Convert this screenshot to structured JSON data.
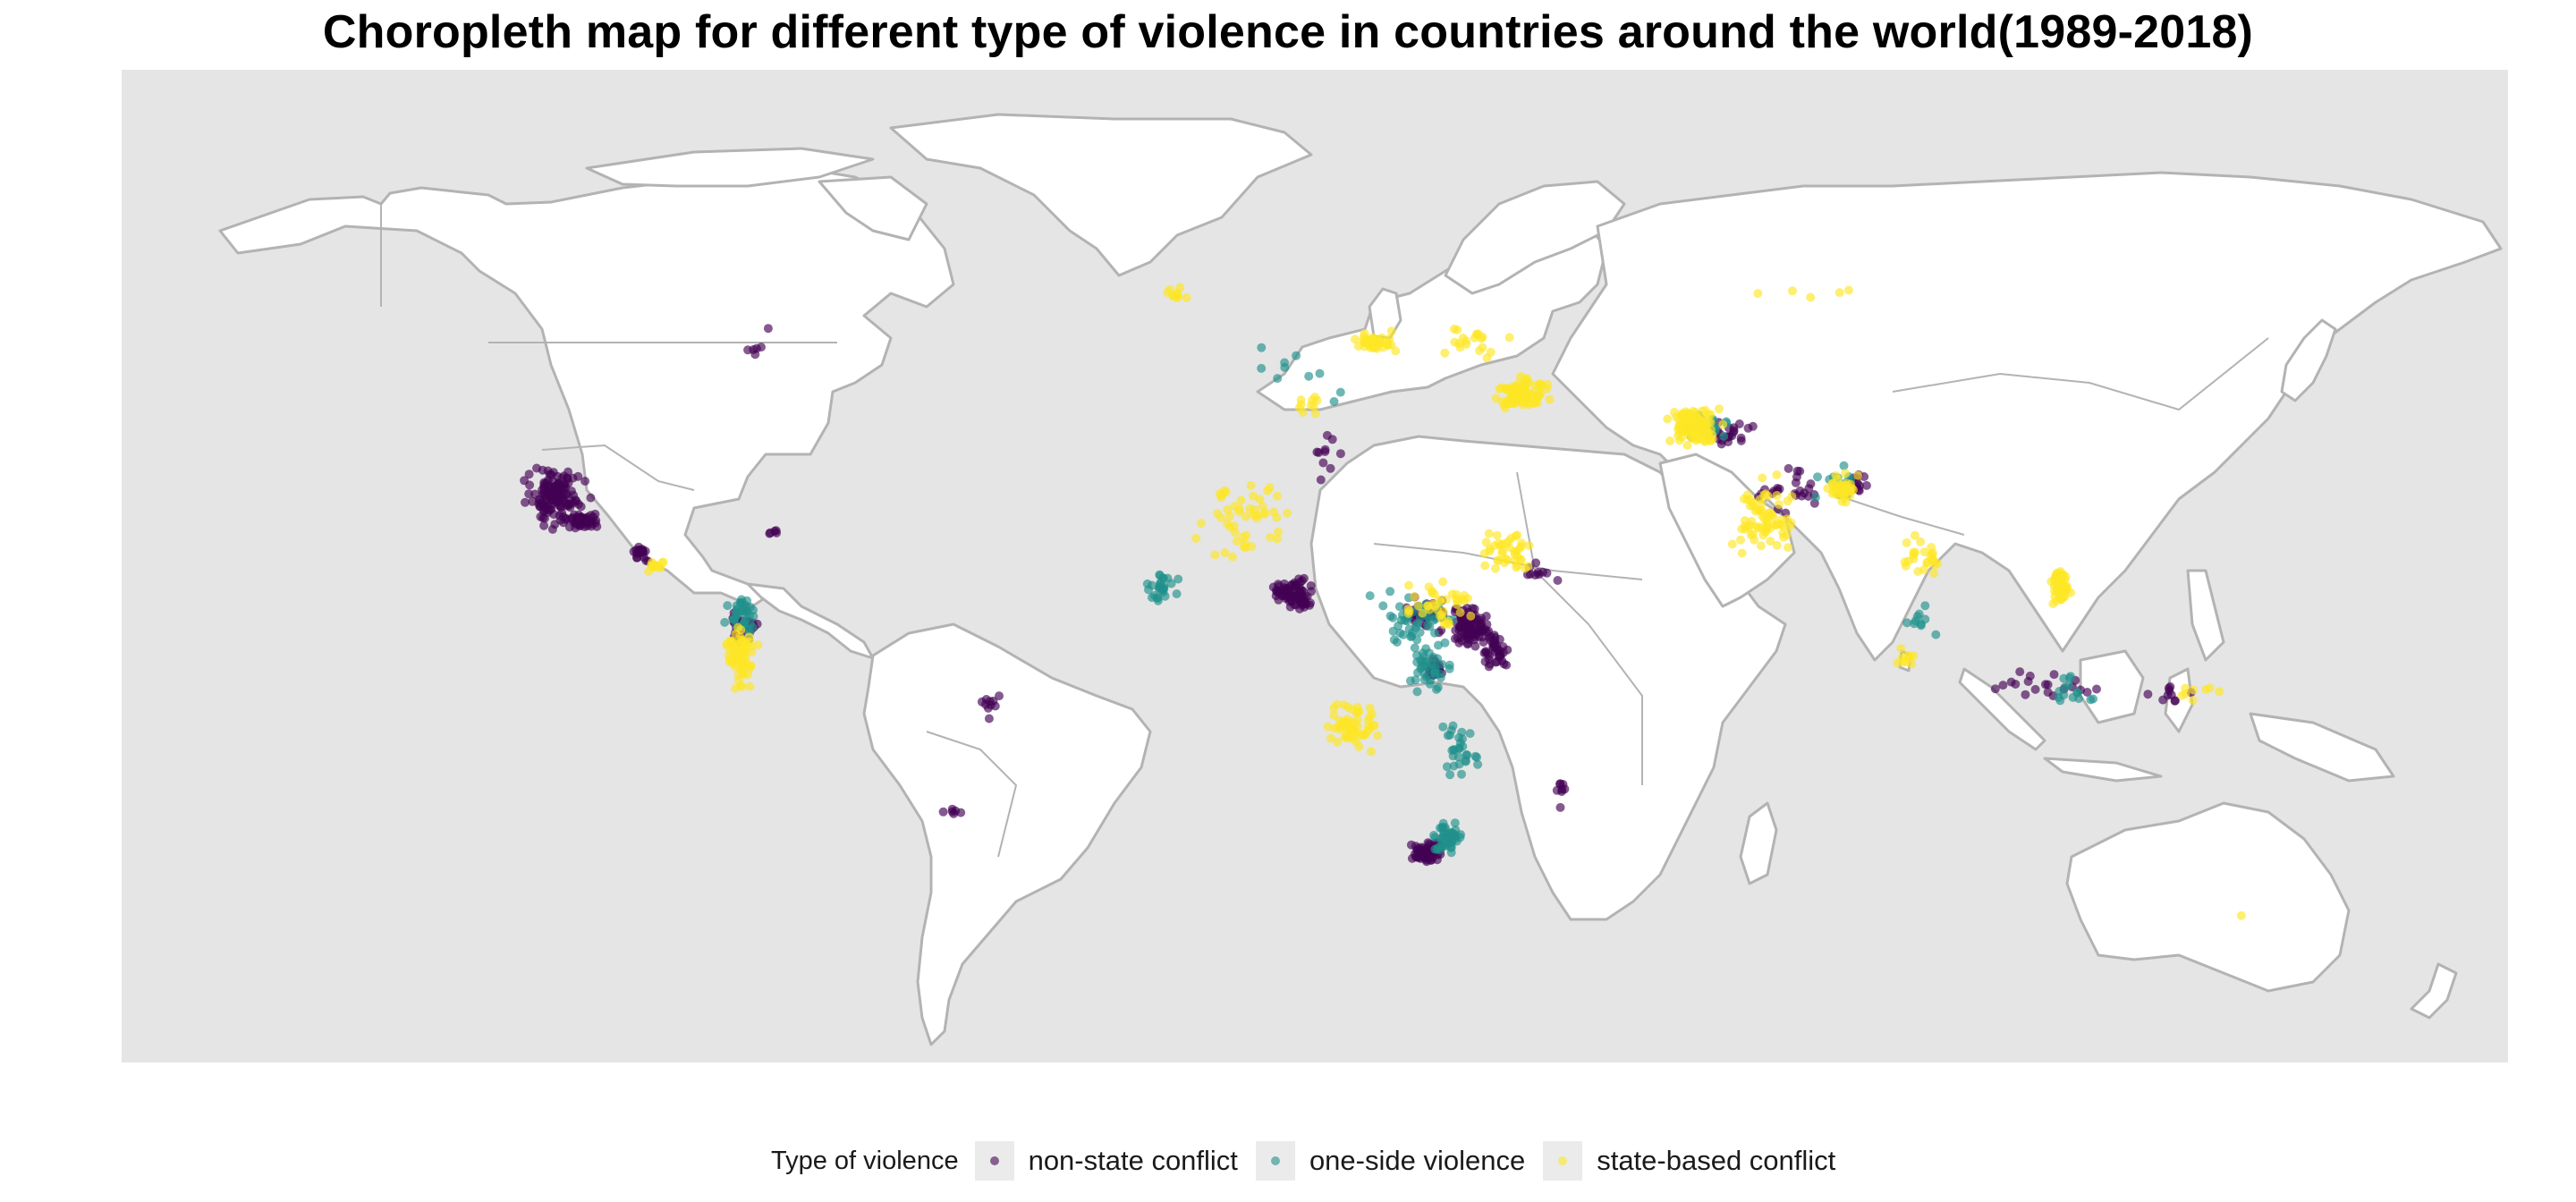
{
  "title": "Choropleth map for different type of violence in countries around the world(1989-2018)",
  "map": {
    "projection": "equirectangular",
    "lon_range": [
      -168,
      190
    ],
    "lat_range": [
      -58,
      84
    ],
    "ocean_color": "#e5e5e5",
    "land_color": "#ffffff",
    "border_color": "#b3b3b3"
  },
  "legend": {
    "title": "Type of violence",
    "items": [
      {
        "label": "non-state conflict",
        "color": "#440154",
        "icon": "dot-icon"
      },
      {
        "label": "one-side violence",
        "color": "#21908c",
        "icon": "dot-icon"
      },
      {
        "label": "state-based conflict",
        "color": "#fde725",
        "icon": "dot-icon"
      }
    ]
  },
  "chart_data": {
    "type": "scatter",
    "title": "Choropleth map for different type of violence in countries around the world(1989-2018)",
    "xlabel": "",
    "ylabel": "",
    "legend_position": "bottom",
    "series": [
      {
        "name": "non-state conflict",
        "color": "#440154",
        "clusters": [
          {
            "lon": -103,
            "lat": 23,
            "n": 140,
            "spread": [
              6,
              5
            ]
          },
          {
            "lon": -99,
            "lat": 19.5,
            "n": 50,
            "spread": [
              3,
              1.5
            ]
          },
          {
            "lon": -90,
            "lat": 15,
            "n": 20,
            "spread": [
              2,
              1.5
            ]
          },
          {
            "lon": -75,
            "lat": 4,
            "n": 25,
            "spread": [
              3,
              4
            ]
          },
          {
            "lon": -38,
            "lat": -7,
            "n": 10,
            "spread": [
              2,
              3
            ]
          },
          {
            "lon": -43,
            "lat": -22,
            "n": 6,
            "spread": [
              2,
              1
            ]
          },
          {
            "lon": -73,
            "lat": 44,
            "n": 5,
            "spread": [
              2,
              1
            ]
          },
          {
            "lon": -71,
            "lat": 47,
            "n": 1,
            "spread": [
              0,
              0
            ]
          },
          {
            "lon": 8,
            "lat": 9,
            "n": 80,
            "spread": [
              4,
              3
            ]
          },
          {
            "lon": 28,
            "lat": 6,
            "n": 40,
            "spread": [
              4,
              3
            ]
          },
          {
            "lon": 34,
            "lat": 4,
            "n": 90,
            "spread": [
              4,
              4
            ]
          },
          {
            "lon": 38,
            "lat": 1,
            "n": 40,
            "spread": [
              3,
              4
            ]
          },
          {
            "lon": 28,
            "lat": -28,
            "n": 80,
            "spread": [
              3,
              2
            ]
          },
          {
            "lon": 29,
            "lat": -2,
            "n": 25,
            "spread": [
              2,
              2
            ]
          },
          {
            "lon": 45,
            "lat": 12,
            "n": 10,
            "spread": [
              3,
              3
            ]
          },
          {
            "lon": 12,
            "lat": 30,
            "n": 10,
            "spread": [
              6,
              6
            ]
          },
          {
            "lon": 74,
            "lat": 32,
            "n": 20,
            "spread": [
              4,
              3
            ]
          },
          {
            "lon": 82,
            "lat": 24,
            "n": 25,
            "spread": [
              6,
              4
            ]
          },
          {
            "lon": 92,
            "lat": 25,
            "n": 15,
            "spread": [
              3,
              2
            ]
          },
          {
            "lon": 120,
            "lat": -4,
            "n": 20,
            "spread": [
              10,
              3
            ]
          },
          {
            "lon": 140,
            "lat": -5,
            "n": 10,
            "spread": [
              6,
              2
            ]
          },
          {
            "lon": 48,
            "lat": -19,
            "n": 8,
            "spread": [
              1,
              3
            ]
          },
          {
            "lon": -70,
            "lat": 18,
            "n": 5,
            "spread": [
              3,
              1
            ]
          }
        ]
      },
      {
        "name": "one-side violence",
        "color": "#21908c",
        "clusters": [
          {
            "lon": -75,
            "lat": 6,
            "n": 40,
            "spread": [
              3,
              4
            ]
          },
          {
            "lon": -12,
            "lat": 10,
            "n": 30,
            "spread": [
              3,
              3
            ]
          },
          {
            "lon": 26,
            "lat": 5,
            "n": 50,
            "spread": [
              8,
              6
            ]
          },
          {
            "lon": 31,
            "lat": -26,
            "n": 50,
            "spread": [
              3,
              3
            ]
          },
          {
            "lon": 33,
            "lat": -13,
            "n": 30,
            "spread": [
              4,
              6
            ]
          },
          {
            "lon": 28,
            "lat": -2,
            "n": 40,
            "spread": [
              4,
              4
            ]
          },
          {
            "lon": 70,
            "lat": 33,
            "n": 20,
            "spread": [
              5,
              3
            ]
          },
          {
            "lon": 90,
            "lat": 25,
            "n": 15,
            "spread": [
              5,
              3
            ]
          },
          {
            "lon": 125,
            "lat": -5,
            "n": 15,
            "spread": [
              8,
              3
            ]
          },
          {
            "lon": 8,
            "lat": 40,
            "n": 10,
            "spread": [
              12,
              6
            ]
          },
          {
            "lon": 102,
            "lat": 5,
            "n": 10,
            "spread": [
              3,
              4
            ]
          }
        ]
      },
      {
        "name": "state-based conflict",
        "color": "#fde725",
        "clusters": [
          {
            "lon": 42,
            "lat": 38,
            "n": 90,
            "spread": [
              5,
              3
            ]
          },
          {
            "lon": 68,
            "lat": 33,
            "n": 110,
            "spread": [
              5,
              4
            ]
          },
          {
            "lon": 78,
            "lat": 20,
            "n": 70,
            "spread": [
              6,
              7
            ]
          },
          {
            "lon": 90,
            "lat": 24,
            "n": 40,
            "spread": [
              3,
              3
            ]
          },
          {
            "lon": 123,
            "lat": 10,
            "n": 50,
            "spread": [
              2,
              3
            ]
          },
          {
            "lon": -75,
            "lat": 0,
            "n": 70,
            "spread": [
              3,
              6
            ]
          },
          {
            "lon": 17,
            "lat": -10,
            "n": 60,
            "spread": [
              5,
              5
            ]
          },
          {
            "lon": 0,
            "lat": 20,
            "n": 50,
            "spread": [
              10,
              8
            ]
          },
          {
            "lon": 20,
            "lat": 45,
            "n": 40,
            "spread": [
              4,
              2
            ]
          },
          {
            "lon": 40,
            "lat": 15,
            "n": 40,
            "spread": [
              6,
              5
            ]
          },
          {
            "lon": 30,
            "lat": 8,
            "n": 40,
            "spread": [
              8,
              5
            ]
          },
          {
            "lon": 102,
            "lat": 14,
            "n": 25,
            "spread": [
              4,
              4
            ]
          },
          {
            "lon": 35,
            "lat": 45,
            "n": 20,
            "spread": [
              8,
              4
            ]
          },
          {
            "lon": -88,
            "lat": 13,
            "n": 15,
            "spread": [
              2,
              1
            ]
          },
          {
            "lon": 100,
            "lat": 0,
            "n": 10,
            "spread": [
              3,
              2
            ]
          },
          {
            "lon": 145,
            "lat": -5,
            "n": 8,
            "spread": [
              6,
              2
            ]
          },
          {
            "lon": 150,
            "lat": -37,
            "n": 1,
            "spread": [
              0,
              0
            ]
          },
          {
            "lon": 85,
            "lat": 52,
            "n": 5,
            "spread": [
              15,
              1
            ]
          },
          {
            "lon": -10,
            "lat": 52,
            "n": 10,
            "spread": [
              2,
              1
            ]
          },
          {
            "lon": 10,
            "lat": 36,
            "n": 10,
            "spread": [
              4,
              2
            ]
          }
        ]
      }
    ]
  }
}
